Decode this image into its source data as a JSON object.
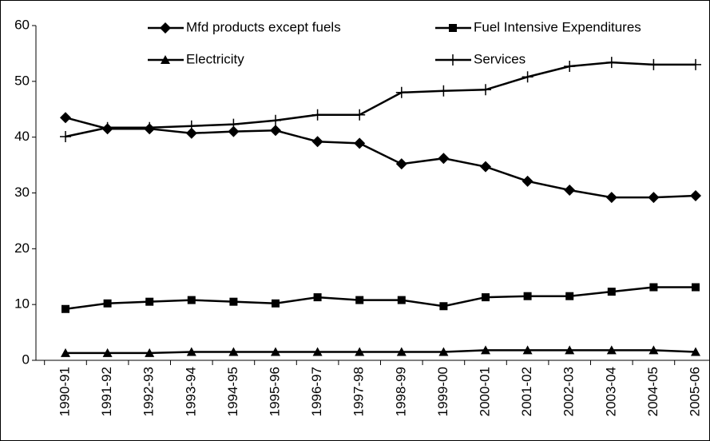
{
  "chart_data": {
    "type": "line",
    "categories": [
      "1990-91",
      "1991-92",
      "1992-93",
      "1993-94",
      "1994-95",
      "1995-96",
      "1996-97",
      "1997-98",
      "1998-99",
      "1999-00",
      "2000-01",
      "2001-02",
      "2002-03",
      "2003-04",
      "2004-05",
      "2005-06"
    ],
    "series": [
      {
        "name": "Mfd products except fuels",
        "color": "#000000",
        "marker": "diamond",
        "values": [
          43.5,
          41.5,
          41.5,
          40.7,
          41,
          41.2,
          39.2,
          38.9,
          35.2,
          36.2,
          34.7,
          32.1,
          30.5,
          29.2,
          29.2,
          29.5
        ]
      },
      {
        "name": "Fuel Intensive Expenditures",
        "color": "#000000",
        "marker": "square",
        "values": [
          9.2,
          10.2,
          10.5,
          10.8,
          10.5,
          10.2,
          11.3,
          10.8,
          10.8,
          9.7,
          11.3,
          11.5,
          11.5,
          12.3,
          13.1,
          13.1
        ]
      },
      {
        "name": "Electricity",
        "color": "#000000",
        "marker": "triangle",
        "values": [
          1.3,
          1.3,
          1.3,
          1.5,
          1.5,
          1.5,
          1.5,
          1.5,
          1.5,
          1.5,
          1.8,
          1.8,
          1.8,
          1.8,
          1.8,
          1.5
        ]
      },
      {
        "name": "Services",
        "color": "#000000",
        "marker": "plus",
        "values": [
          40.1,
          41.7,
          41.7,
          42,
          42.3,
          43,
          44,
          44,
          48,
          48.3,
          48.5,
          50.8,
          52.7,
          53.4,
          53,
          53
        ]
      }
    ],
    "ylim": [
      0,
      60
    ],
    "yticks": [
      0,
      10,
      20,
      30,
      40,
      50,
      60
    ],
    "legend": "top"
  }
}
